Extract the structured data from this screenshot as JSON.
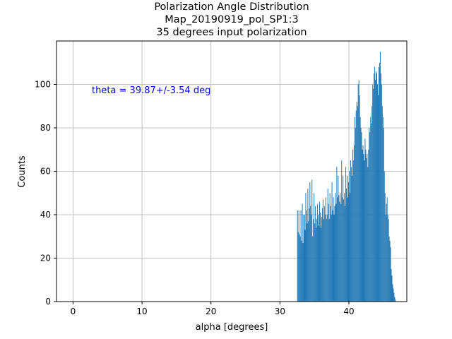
{
  "chart_data": {
    "type": "bar",
    "title_lines": [
      "Polarization Angle Distribution",
      "Map_20190919_pol_SP1:3",
      "35 degrees input polarization"
    ],
    "xlabel": "alpha [degrees]",
    "ylabel": "Counts",
    "xlim": [
      -2.4,
      48.4
    ],
    "ylim": [
      0,
      120
    ],
    "xticks": [
      0,
      10,
      20,
      30,
      40
    ],
    "yticks": [
      0,
      20,
      40,
      60,
      80,
      100
    ],
    "grid": true,
    "annotation": "theta = 39.87+/-3.54 deg",
    "colors": {
      "bars": "#1f77b4",
      "annotation": "#0000ff",
      "grid": "#b0b0b0"
    },
    "bin_start": 32.5,
    "bin_width": 0.1,
    "values": [
      42,
      32,
      42,
      31,
      30,
      42,
      28,
      45,
      27,
      40,
      40,
      33,
      50,
      42,
      36,
      52,
      37,
      43,
      55,
      44,
      40,
      56,
      30,
      38,
      50,
      36,
      44,
      34,
      38,
      45,
      40,
      35,
      46,
      41,
      34,
      39,
      43,
      47,
      38,
      44,
      40,
      48,
      38,
      40,
      52,
      45,
      38,
      50,
      44,
      40,
      55,
      42,
      48,
      40,
      44,
      50,
      45,
      62,
      48,
      58,
      49,
      46,
      50,
      45,
      65,
      48,
      58,
      47,
      50,
      44,
      62,
      52,
      58,
      48,
      55,
      60,
      50,
      65,
      62,
      58,
      70,
      65,
      72,
      85,
      80,
      88,
      92,
      90,
      100,
      102,
      95,
      85,
      80,
      78,
      70,
      72,
      68,
      65,
      75,
      70,
      66,
      68,
      62,
      70,
      80,
      78,
      85,
      82,
      90,
      100,
      98,
      105,
      108,
      102,
      106,
      105,
      100,
      95,
      108,
      110,
      115,
      105,
      100,
      90,
      85,
      80,
      60,
      50,
      40,
      45,
      48,
      40,
      38,
      30,
      28,
      25,
      15,
      12,
      8,
      6,
      4,
      2,
      1,
      0
    ]
  }
}
